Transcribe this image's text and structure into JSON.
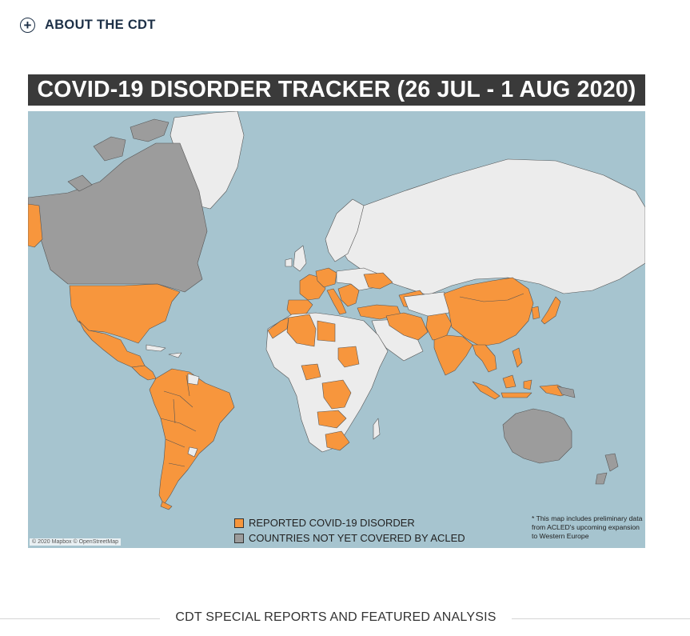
{
  "about": {
    "icon": "plus-circle-icon",
    "label": "ABOUT THE CDT"
  },
  "map": {
    "title": "COVID-19 DISORDER TRACKER (26 JUL - 1 AUG 2020)",
    "colors": {
      "ocean": "#a6c4cf",
      "land_default": "#ececec",
      "reported": "#f7963d",
      "not_covered": "#9c9c9c",
      "title_bar": "#3a3a3a"
    },
    "legend": [
      {
        "label": "REPORTED COVID-19 DISORDER",
        "color": "#f7963d"
      },
      {
        "label": "COUNTRIES NOT YET COVERED BY ACLED",
        "color": "#9c9c9c"
      }
    ],
    "note": "* This map includes preliminary data from ACLED's upcoming expansion to Western Europe",
    "attribution": "© 2020 Mapbox © OpenStreetMap",
    "regions": {
      "reported": [
        "United States",
        "Mexico",
        "Central America",
        "Colombia",
        "Venezuela",
        "Ecuador",
        "Peru",
        "Brazil",
        "Bolivia",
        "Paraguay",
        "Chile",
        "Argentina",
        "Spain",
        "France",
        "Germany",
        "Italy",
        "Balkans",
        "Greece",
        "Turkey",
        "Morocco",
        "Algeria",
        "Tunisia",
        "Libya",
        "Sudan",
        "Nigeria",
        "DR Congo",
        "Angola",
        "Zambia",
        "Zimbabwe",
        "Mozambique",
        "South Africa",
        "Iraq",
        "Iran",
        "Afghanistan",
        "Pakistan",
        "India",
        "Bangladesh",
        "Myanmar",
        "Thailand",
        "China",
        "Mongolia",
        "South Korea",
        "Japan",
        "Philippines",
        "Indonesia",
        "Papua New Guinea",
        "Ukraine",
        "Kazakhstan"
      ],
      "not_covered": [
        "Canada",
        "Alaska",
        "Australia",
        "New Zealand",
        "Timor-Leste"
      ]
    }
  },
  "section": {
    "heading": "CDT SPECIAL REPORTS AND FEATURED ANALYSIS"
  }
}
